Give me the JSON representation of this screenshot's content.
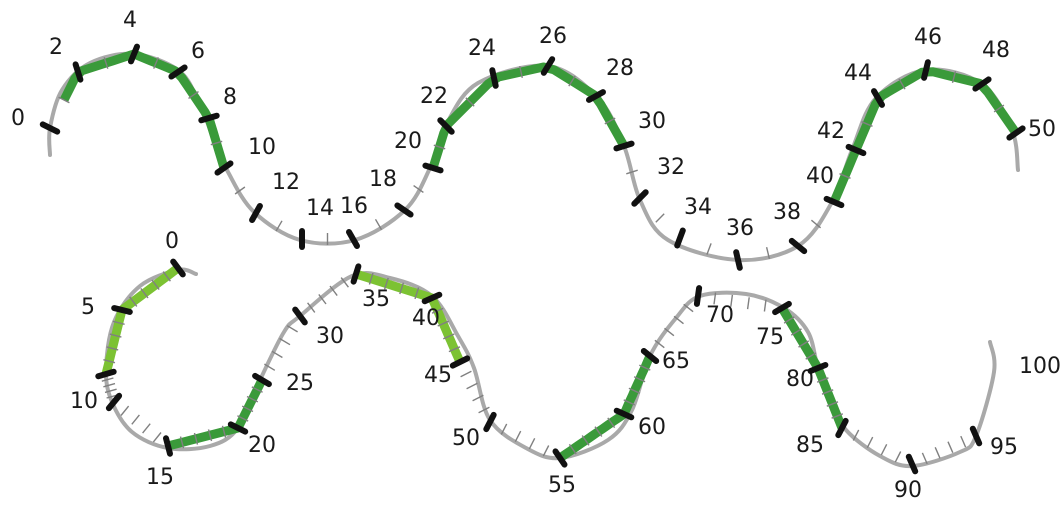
{
  "colors": {
    "track": "#a9a9a9",
    "green_dark": "#3a9a3a",
    "green_light": "#7cc233",
    "tick_major": "#111111",
    "label": "#1a1a1a"
  },
  "lines": [
    {
      "name": "number-line-0-50",
      "start": 0,
      "end": 50,
      "labels": [
        "0",
        "2",
        "4",
        "6",
        "8",
        "10",
        "12",
        "14",
        "16",
        "18",
        "20",
        "22",
        "24",
        "26",
        "28",
        "30",
        "32",
        "34",
        "36",
        "38",
        "40",
        "42",
        "44",
        "46",
        "48",
        "50"
      ],
      "highlighted_ranges": [
        {
          "from": 1,
          "to": 10,
          "color": "green_dark"
        },
        {
          "from": 20,
          "to": 30,
          "color": "green_dark"
        },
        {
          "from": 40,
          "to": 50,
          "color": "green_dark"
        }
      ]
    },
    {
      "name": "number-line-0-100",
      "start": 0,
      "end": 100,
      "labels": [
        "0",
        "5",
        "10",
        "15",
        "20",
        "25",
        "30",
        "35",
        "40",
        "45",
        "50",
        "55",
        "60",
        "65",
        "70",
        "75",
        "80",
        "85",
        "90",
        "95",
        "100"
      ],
      "highlighted_ranges": [
        {
          "from": 0,
          "to": 10,
          "color": "green_light"
        },
        {
          "from": 20,
          "to": 30,
          "color": "green_dark"
        },
        {
          "from": 40,
          "to": 50,
          "color": "green_light"
        },
        {
          "from": 60,
          "to": 70,
          "color": "green_dark"
        },
        {
          "from": 80,
          "to": 90,
          "color": "green_dark"
        }
      ]
    }
  ]
}
